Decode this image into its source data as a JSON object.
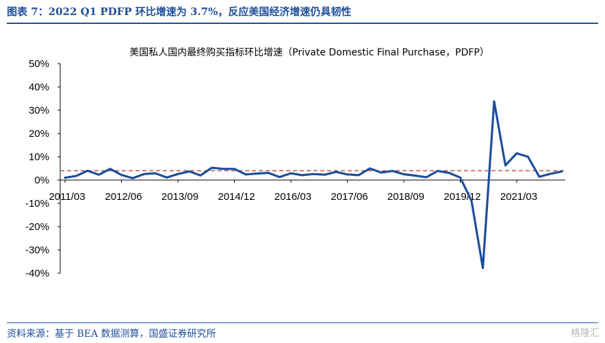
{
  "figure": {
    "title": "图表 7：2022 Q1 PDFP 环比增速为 3.7%，反应美国经济增速仍具韧性",
    "source": "资料来源：基于 BEA 数据测算，国盛证券研究所",
    "watermark": "格隆汇"
  },
  "chart_data": {
    "type": "line",
    "title": "美国私人国内最终购买指标环比增速（Private Domestic Final Purchase，PDFP）",
    "xlabel": "",
    "ylabel": "",
    "ylim": [
      -40,
      50
    ],
    "yticks": [
      "50%",
      "40%",
      "30%",
      "20%",
      "10%",
      "0%",
      "-10%",
      "-20%",
      "-30%",
      "-40%"
    ],
    "ytick_values": [
      50,
      40,
      30,
      20,
      10,
      0,
      -10,
      -20,
      -30,
      -40
    ],
    "xtick_labels": [
      "2011/03",
      "2012/06",
      "2013/09",
      "2014/12",
      "2016/03",
      "2017/06",
      "2018/09",
      "2019/12",
      "2021/03"
    ],
    "grid": false,
    "series": [
      {
        "values": [
          1.0,
          1.8,
          4.0,
          2.3,
          4.8,
          2.2,
          0.8,
          2.6,
          2.9,
          1.1,
          2.6,
          3.7,
          2.0,
          5.3,
          4.8,
          4.8,
          2.4,
          2.8,
          3.1,
          1.3,
          2.9,
          2.1,
          2.6,
          2.3,
          3.5,
          2.4,
          2.1,
          5.0,
          3.2,
          3.9,
          2.5,
          1.9,
          1.2,
          3.9,
          3.1,
          1.1,
          -9.0,
          -37.8,
          33.8,
          6.3,
          11.5,
          10.0,
          1.4,
          2.7,
          3.7
        ],
        "color": "#1f4e9a"
      }
    ],
    "reference_line": {
      "value": 4.0,
      "color": "#c0504d",
      "style": "dashed"
    }
  }
}
